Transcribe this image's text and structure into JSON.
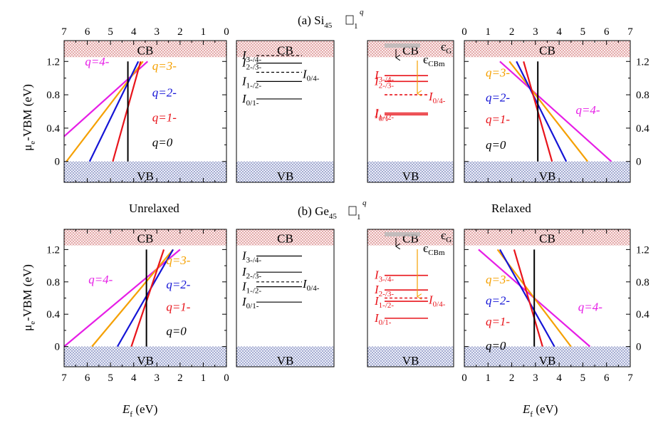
{
  "figure": {
    "title_a_prefix": "(a) Si",
    "title_a_sub": "45",
    "title_b_prefix": "(b) Ge",
    "title_b_sub": "45",
    "vacancy_sub": "1",
    "vacancy_sup": "q",
    "label_unrelaxed": "Unrelaxed",
    "label_relaxed": "Relaxed",
    "ylabel_main": "μ",
    "ylabel_sub": "e",
    "ylabel_rest": "-VBM (eV)",
    "xlabel_main": "E",
    "xlabel_sub": "f",
    "xlabel_rest": " (eV)",
    "cb_label": "CB",
    "vb_label": "VB"
  },
  "colors": {
    "q0": "#000000",
    "q1": "#e8141b",
    "q2": "#1414d6",
    "q3": "#f5a000",
    "q4": "#e61ee6",
    "arrow": "#f5a000",
    "band": "#c84040",
    "vb_band": "#4050a0"
  },
  "chart_data": [
    {
      "type": "line",
      "panel": "(a) Si45 unrelaxed",
      "x_axis": "E_f (eV)",
      "x_reversed": true,
      "xlim": [
        0,
        7
      ],
      "ylim": [
        -0.25,
        1.45
      ],
      "xticks": [
        "7",
        "6",
        "5",
        "4",
        "3",
        "2",
        "1",
        "0"
      ],
      "yticks": [
        "0",
        "0.4",
        "0.8",
        "1.2"
      ],
      "cb_bottom": 1.25,
      "vb_top": 0,
      "series": [
        {
          "name": "q=4-",
          "color_key": "q4",
          "x": [
            7.0,
            3.4
          ],
          "y": [
            0.3,
            1.2
          ]
        },
        {
          "name": "q=3-",
          "color_key": "q3",
          "x": [
            6.9,
            3.6
          ],
          "y": [
            0.0,
            1.2
          ]
        },
        {
          "name": "q=2-",
          "color_key": "q2",
          "x": [
            5.9,
            3.8
          ],
          "y": [
            0.0,
            1.2
          ]
        },
        {
          "name": "q=1-",
          "color_key": "q1",
          "x": [
            4.9,
            3.7
          ],
          "y": [
            0.0,
            1.2
          ]
        },
        {
          "name": "q=0",
          "color_key": "q0",
          "x": [
            4.25,
            4.25
          ],
          "y": [
            0.0,
            1.2
          ]
        }
      ],
      "labels": [
        {
          "text": "q=4-",
          "color_key": "q4",
          "x": 6.1,
          "y": 1.15
        },
        {
          "text": "q=3-",
          "color_key": "q3",
          "x": 3.2,
          "y": 1.1
        },
        {
          "text": "q=2-",
          "color_key": "q2",
          "x": 3.2,
          "y": 0.78
        },
        {
          "text": "q=1-",
          "color_key": "q1",
          "x": 3.2,
          "y": 0.48
        },
        {
          "text": "q=0",
          "color_key": "q0",
          "x": 3.2,
          "y": 0.18
        }
      ]
    },
    {
      "type": "line",
      "panel": "(a) Si45 unrelaxed levels",
      "ylim": [
        -0.25,
        1.45
      ],
      "cb_bottom": 1.25,
      "vb_top": 0,
      "levels": [
        {
          "label": "I",
          "sub": "3-/4-",
          "y": 1.27,
          "dashed": true
        },
        {
          "label": "I",
          "sub": "2-/3-",
          "y": 1.18,
          "dashed": false
        },
        {
          "label": "I",
          "sub": "0/4-",
          "y": 1.07,
          "dashed": true
        },
        {
          "label": "I",
          "sub": "1-/2-",
          "y": 0.96,
          "dashed": false
        },
        {
          "label": "I",
          "sub": "0/1-",
          "y": 0.75,
          "dashed": false
        }
      ]
    },
    {
      "type": "line",
      "panel": "(a) Si45 relaxed levels",
      "ylim": [
        -0.25,
        1.45
      ],
      "cb_bottom": 1.25,
      "vb_top": 0,
      "eps_g_label": "є",
      "eps_g_sub": "G",
      "eps_cbm_label": "є",
      "eps_cbm_sub": "CBm",
      "levels": [
        {
          "label": "I",
          "sub": "3-/4-",
          "y": 1.03,
          "dashed": false
        },
        {
          "label": "I",
          "sub": "2-/3-",
          "y": 0.96,
          "dashed": false
        },
        {
          "label": "I",
          "sub": "0/4-",
          "y": 0.8,
          "dashed": true
        },
        {
          "label": "I",
          "sub": "1-/2-",
          "y": 0.58,
          "dashed": false
        },
        {
          "label": "I",
          "sub": "0/1-",
          "y": 0.56,
          "dashed": false
        }
      ]
    },
    {
      "type": "line",
      "panel": "(a) Si45 relaxed",
      "x_axis": "E_f (eV)",
      "xlim": [
        0,
        7
      ],
      "ylim": [
        -0.25,
        1.45
      ],
      "xticks": [
        "0",
        "1",
        "2",
        "3",
        "4",
        "5",
        "6",
        "7"
      ],
      "yticks": [
        "0",
        "0.4",
        "0.8",
        "1.2"
      ],
      "cb_bottom": 1.25,
      "vb_top": 0,
      "series": [
        {
          "name": "q=4-",
          "color_key": "q4",
          "x": [
            1.5,
            6.2
          ],
          "y": [
            1.2,
            0.0
          ]
        },
        {
          "name": "q=3-",
          "color_key": "q3",
          "x": [
            1.9,
            5.2
          ],
          "y": [
            1.2,
            0.0
          ]
        },
        {
          "name": "q=2-",
          "color_key": "q2",
          "x": [
            2.2,
            4.3
          ],
          "y": [
            1.2,
            0.0
          ]
        },
        {
          "name": "q=1-",
          "color_key": "q1",
          "x": [
            2.5,
            3.7
          ],
          "y": [
            1.2,
            0.0
          ]
        },
        {
          "name": "q=0",
          "color_key": "q0",
          "x": [
            3.1,
            3.1
          ],
          "y": [
            0.0,
            1.2
          ]
        }
      ],
      "labels": [
        {
          "text": "q=3-",
          "color_key": "q3",
          "x": 0.9,
          "y": 1.02
        },
        {
          "text": "q=2-",
          "color_key": "q2",
          "x": 0.9,
          "y": 0.72
        },
        {
          "text": "q=1-",
          "color_key": "q1",
          "x": 0.9,
          "y": 0.46
        },
        {
          "text": "q=0",
          "color_key": "q0",
          "x": 0.9,
          "y": 0.15
        },
        {
          "text": "q=4-",
          "color_key": "q4",
          "x": 4.7,
          "y": 0.57
        }
      ]
    },
    {
      "type": "line",
      "panel": "(b) Ge45 unrelaxed",
      "x_axis": "E_f (eV)",
      "x_reversed": true,
      "xlim": [
        0,
        7
      ],
      "ylim": [
        -0.25,
        1.45
      ],
      "xticks": [
        "7",
        "6",
        "5",
        "4",
        "3",
        "2",
        "1",
        "0"
      ],
      "yticks": [
        "0",
        "0.4",
        "0.8",
        "1.2"
      ],
      "cb_bottom": 1.25,
      "vb_top": 0,
      "series": [
        {
          "name": "q=4-",
          "color_key": "q4",
          "x": [
            7.0,
            2.0
          ],
          "y": [
            0.0,
            1.2
          ]
        },
        {
          "name": "q=3-",
          "color_key": "q3",
          "x": [
            5.8,
            2.3
          ],
          "y": [
            0.0,
            1.2
          ]
        },
        {
          "name": "q=2-",
          "color_key": "q2",
          "x": [
            4.7,
            2.3
          ],
          "y": [
            0.0,
            1.2
          ]
        },
        {
          "name": "q=1-",
          "color_key": "q1",
          "x": [
            4.1,
            2.7
          ],
          "y": [
            0.0,
            1.2
          ]
        },
        {
          "name": "q=0",
          "color_key": "q0",
          "x": [
            3.45,
            3.45
          ],
          "y": [
            0.0,
            1.2
          ]
        }
      ],
      "labels": [
        {
          "text": "q=4-",
          "color_key": "q4",
          "x": 5.95,
          "y": 0.78
        },
        {
          "text": "q=3-",
          "color_key": "q3",
          "x": 2.6,
          "y": 1.02
        },
        {
          "text": "q=2-",
          "color_key": "q2",
          "x": 2.6,
          "y": 0.72
        },
        {
          "text": "q=1-",
          "color_key": "q1",
          "x": 2.6,
          "y": 0.44
        },
        {
          "text": "q=0",
          "color_key": "q0",
          "x": 2.6,
          "y": 0.14
        }
      ]
    },
    {
      "type": "line",
      "panel": "(b) Ge45 unrelaxed levels",
      "ylim": [
        -0.25,
        1.45
      ],
      "cb_bottom": 1.25,
      "vb_top": 0,
      "levels": [
        {
          "label": "I",
          "sub": "3-/4-",
          "y": 1.12,
          "dashed": false
        },
        {
          "label": "I",
          "sub": "2-/3-",
          "y": 0.92,
          "dashed": false
        },
        {
          "label": "I",
          "sub": "0/4-",
          "y": 0.8,
          "dashed": true
        },
        {
          "label": "I",
          "sub": "1-/2-",
          "y": 0.74,
          "dashed": false
        },
        {
          "label": "I",
          "sub": "0/1-",
          "y": 0.55,
          "dashed": false
        }
      ]
    },
    {
      "type": "line",
      "panel": "(b) Ge45 relaxed levels",
      "ylim": [
        -0.25,
        1.45
      ],
      "cb_bottom": 1.25,
      "vb_top": 0,
      "eps_g_label": "є",
      "eps_g_sub": "G",
      "eps_cbm_label": "є",
      "eps_cbm_sub": "CBm",
      "levels": [
        {
          "label": "I",
          "sub": "3-/4-",
          "y": 0.88,
          "dashed": false
        },
        {
          "label": "I",
          "sub": "2-/3-",
          "y": 0.7,
          "dashed": false
        },
        {
          "label": "I",
          "sub": "0/4-",
          "y": 0.6,
          "dashed": true
        },
        {
          "label": "I",
          "sub": "1-/2-",
          "y": 0.56,
          "dashed": false
        },
        {
          "label": "I",
          "sub": "0/1-",
          "y": 0.35,
          "dashed": false
        }
      ]
    },
    {
      "type": "line",
      "panel": "(b) Ge45 relaxed",
      "x_axis": "E_f (eV)",
      "xlim": [
        0,
        7
      ],
      "ylim": [
        -0.25,
        1.45
      ],
      "xticks": [
        "0",
        "1",
        "2",
        "3",
        "4",
        "5",
        "6",
        "7"
      ],
      "yticks": [
        "0",
        "0.4",
        "0.8",
        "1.2"
      ],
      "cb_bottom": 1.25,
      "vb_top": 0,
      "series": [
        {
          "name": "q=4-",
          "color_key": "q4",
          "x": [
            0.6,
            5.3
          ],
          "y": [
            1.2,
            0.0
          ]
        },
        {
          "name": "q=3-",
          "color_key": "q3",
          "x": [
            1.4,
            4.5
          ],
          "y": [
            1.2,
            0.0
          ]
        },
        {
          "name": "q=2-",
          "color_key": "q2",
          "x": [
            1.5,
            3.8
          ],
          "y": [
            1.2,
            0.0
          ]
        },
        {
          "name": "q=1-",
          "color_key": "q1",
          "x": [
            2.1,
            3.3
          ],
          "y": [
            1.2,
            0.0
          ]
        },
        {
          "name": "q=0",
          "color_key": "q0",
          "x": [
            2.95,
            2.95
          ],
          "y": [
            0.0,
            1.2
          ]
        }
      ],
      "labels": [
        {
          "text": "q=3-",
          "color_key": "q3",
          "x": 0.9,
          "y": 0.78
        },
        {
          "text": "q=2-",
          "color_key": "q2",
          "x": 0.9,
          "y": 0.52
        },
        {
          "text": "q=1-",
          "color_key": "q1",
          "x": 0.9,
          "y": 0.26
        },
        {
          "text": "q=0",
          "color_key": "q0",
          "x": 0.9,
          "y": -0.04
        },
        {
          "text": "q=4-",
          "color_key": "q4",
          "x": 4.8,
          "y": 0.44
        }
      ]
    }
  ]
}
